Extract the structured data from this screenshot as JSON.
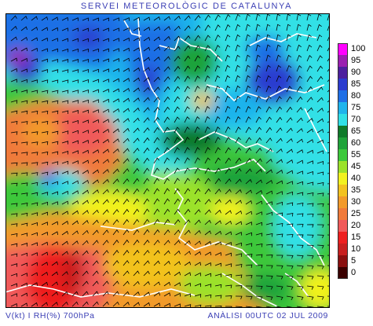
{
  "header": {
    "title": "SERVEI METEOROLÒGIC DE CATALUNYA"
  },
  "footer": {
    "field": "V(kt) I RH(%) 700hPa",
    "analysis": "ANÀLISI 00UTC 02 JUL 2009"
  },
  "legend": {
    "items": [
      {
        "label": "100",
        "color": "#ff00ff"
      },
      {
        "label": "95",
        "color": "#9a1fb0"
      },
      {
        "label": "90",
        "color": "#4d1f9e"
      },
      {
        "label": "85",
        "color": "#2b3ccf"
      },
      {
        "label": "80",
        "color": "#1f6fe6"
      },
      {
        "label": "75",
        "color": "#1fb4ec"
      },
      {
        "label": "70",
        "color": "#31e0e6"
      },
      {
        "label": "65",
        "color": "#0f7a2a"
      },
      {
        "label": "60",
        "color": "#1fa33a"
      },
      {
        "label": "55",
        "color": "#3cc83b"
      },
      {
        "label": "45",
        "color": "#9be22b"
      },
      {
        "label": "40",
        "color": "#f2f21f"
      },
      {
        "label": "35",
        "color": "#f2c21f"
      },
      {
        "label": "30",
        "color": "#f29a2a"
      },
      {
        "label": "25",
        "color": "#f07a3a"
      },
      {
        "label": "20",
        "color": "#f05a5a"
      },
      {
        "label": "15",
        "color": "#ee1f1f"
      },
      {
        "label": "10",
        "color": "#c81f1f"
      },
      {
        "label": "5",
        "color": "#8a1010"
      },
      {
        "label": "0",
        "color": "#3a0000"
      }
    ]
  }
}
